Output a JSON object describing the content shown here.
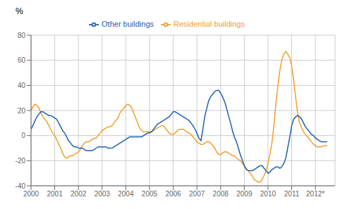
{
  "chart_data": {
    "type": "line",
    "y_label": "%",
    "x": [
      2000.0,
      2000.08,
      2000.17,
      2000.25,
      2000.33,
      2000.42,
      2000.5,
      2000.58,
      2000.67,
      2000.75,
      2000.83,
      2000.92,
      2001.0,
      2001.08,
      2001.17,
      2001.25,
      2001.33,
      2001.42,
      2001.5,
      2001.58,
      2001.67,
      2001.75,
      2001.83,
      2001.92,
      2002.0,
      2002.08,
      2002.17,
      2002.25,
      2002.33,
      2002.42,
      2002.5,
      2002.58,
      2002.67,
      2002.75,
      2002.83,
      2002.92,
      2003.0,
      2003.08,
      2003.17,
      2003.25,
      2003.33,
      2003.42,
      2003.5,
      2003.58,
      2003.67,
      2003.75,
      2003.83,
      2003.92,
      2004.0,
      2004.08,
      2004.17,
      2004.25,
      2004.33,
      2004.42,
      2004.5,
      2004.58,
      2004.67,
      2004.75,
      2004.83,
      2004.92,
      2005.0,
      2005.08,
      2005.17,
      2005.25,
      2005.33,
      2005.42,
      2005.5,
      2005.58,
      2005.67,
      2005.75,
      2005.83,
      2005.92,
      2006.0,
      2006.08,
      2006.17,
      2006.25,
      2006.33,
      2006.42,
      2006.5,
      2006.58,
      2006.67,
      2006.75,
      2006.83,
      2006.92,
      2007.0,
      2007.08,
      2007.17,
      2007.25,
      2007.33,
      2007.42,
      2007.5,
      2007.58,
      2007.67,
      2007.75,
      2007.83,
      2007.92,
      2008.0,
      2008.08,
      2008.17,
      2008.25,
      2008.33,
      2008.42,
      2008.5,
      2008.58,
      2008.67,
      2008.75,
      2008.83,
      2008.92,
      2009.0,
      2009.08,
      2009.17,
      2009.25,
      2009.33,
      2009.42,
      2009.5,
      2009.58,
      2009.67,
      2009.75,
      2009.83,
      2009.92,
      2010.0,
      2010.08,
      2010.17,
      2010.25,
      2010.33,
      2010.42,
      2010.5,
      2010.58,
      2010.67,
      2010.75,
      2010.83,
      2010.92,
      2011.0,
      2011.08,
      2011.17,
      2011.25,
      2011.33,
      2011.42,
      2011.5,
      2011.58,
      2011.67,
      2011.75,
      2011.83,
      2011.92,
      2012.0,
      2012.08,
      2012.17,
      2012.25,
      2012.33,
      2012.5
    ],
    "series": [
      {
        "name": "Residential buildings",
        "color": "#f0a030",
        "values": [
          20,
          23,
          25,
          24,
          22,
          18,
          15,
          13,
          11,
          8,
          5,
          2,
          0,
          -3,
          -7,
          -10,
          -14,
          -17,
          -18,
          -17,
          -16,
          -16,
          -15,
          -14,
          -13,
          -11,
          -8,
          -6,
          -5,
          -5,
          -4,
          -3,
          -2,
          -2,
          0,
          2,
          4,
          5,
          6,
          7,
          7,
          8,
          10,
          12,
          14,
          18,
          20,
          22,
          24,
          25,
          24,
          22,
          18,
          14,
          10,
          6,
          4,
          3,
          3,
          3,
          3,
          3,
          4,
          5,
          6,
          7,
          8,
          8,
          6,
          4,
          2,
          1,
          1,
          2,
          4,
          5,
          5,
          5,
          4,
          3,
          2,
          1,
          -1,
          -3,
          -5,
          -6,
          -7,
          -7,
          -6,
          -5,
          -5,
          -6,
          -8,
          -10,
          -13,
          -15,
          -15,
          -14,
          -13,
          -13,
          -14,
          -15,
          -16,
          -16,
          -18,
          -19,
          -20,
          -22,
          -24,
          -26,
          -28,
          -30,
          -32,
          -35,
          -36,
          -37,
          -37,
          -35,
          -32,
          -28,
          -22,
          -15,
          -5,
          8,
          25,
          40,
          52,
          60,
          65,
          67,
          65,
          62,
          55,
          45,
          30,
          18,
          10,
          6,
          3,
          1,
          -1,
          -3,
          -5,
          -7,
          -8,
          -9,
          -9,
          -9,
          -8,
          -8
        ]
      },
      {
        "name": "Other buildings",
        "color": "#2060b0",
        "values": [
          5,
          8,
          12,
          15,
          17,
          19,
          19,
          18,
          17,
          16,
          16,
          15,
          14,
          13,
          10,
          7,
          4,
          2,
          -1,
          -4,
          -6,
          -8,
          -9,
          -9,
          -10,
          -10,
          -10,
          -11,
          -12,
          -12,
          -12,
          -12,
          -11,
          -10,
          -9,
          -9,
          -9,
          -9,
          -9,
          -10,
          -10,
          -10,
          -9,
          -8,
          -7,
          -6,
          -5,
          -4,
          -3,
          -2,
          -1,
          -1,
          -1,
          -1,
          -1,
          -1,
          -1,
          0,
          1,
          2,
          2,
          3,
          5,
          7,
          9,
          10,
          11,
          12,
          13,
          14,
          15,
          17,
          19,
          19,
          18,
          17,
          16,
          15,
          14,
          13,
          12,
          10,
          8,
          5,
          2,
          -2,
          -4,
          5,
          15,
          22,
          28,
          31,
          33,
          35,
          36,
          36,
          34,
          31,
          27,
          22,
          16,
          10,
          4,
          -1,
          -5,
          -10,
          -15,
          -20,
          -24,
          -27,
          -28,
          -28,
          -28,
          -27,
          -26,
          -25,
          -24,
          -24,
          -26,
          -28,
          -30,
          -29,
          -27,
          -26,
          -25,
          -25,
          -26,
          -25,
          -22,
          -18,
          -10,
          -1,
          8,
          13,
          15,
          16,
          15,
          13,
          10,
          7,
          5,
          3,
          1,
          0,
          -2,
          -3,
          -4,
          -5,
          -5,
          -5
        ]
      }
    ],
    "xlim": [
      2000,
      2012.83
    ],
    "xticks": [
      2000,
      2001,
      2002,
      2003,
      2004,
      2005,
      2006,
      2007,
      2008,
      2009,
      2010,
      2011,
      {
        "value": 2012,
        "label": "2012*"
      }
    ],
    "ylim": [
      -40,
      80
    ],
    "yticks": [
      -40,
      -20,
      0,
      20,
      40,
      60,
      80
    ],
    "grid": true,
    "legend": "top"
  }
}
